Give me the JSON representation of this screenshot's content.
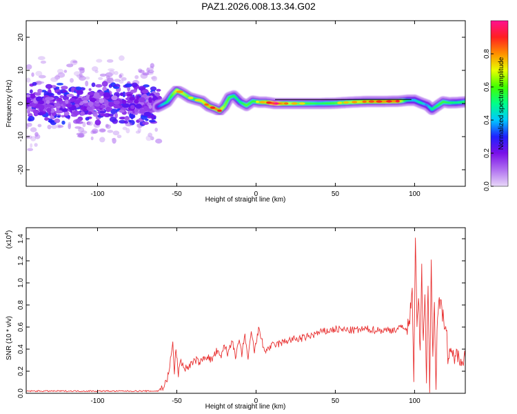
{
  "title": "PAZ1.2026.008.13.34.G02",
  "chart_data": [
    {
      "type": "heatmap",
      "name": "spectrogram",
      "xlabel": "Height of straight line (km)",
      "ylabel": "Frequency (Hz)",
      "xlim": [
        -145,
        132
      ],
      "ylim": [
        -25,
        25
      ],
      "xticks": [
        -100,
        -50,
        0,
        50,
        100
      ],
      "yticks": [
        -20,
        -10,
        0,
        10,
        20
      ],
      "colorbar": {
        "label": "Normalized spectral amplitude",
        "range": [
          0,
          1
        ],
        "ticks": [
          "0.0",
          "0.2",
          "0.4",
          "0.6",
          "0.8"
        ],
        "tick_values": [
          0,
          0.2,
          0.4,
          0.6,
          0.8
        ],
        "colormap": [
          "#e8d8f8",
          "#b070f0",
          "#7a10e8",
          "#2020ff",
          "#00c8ff",
          "#00ff88",
          "#40ff00",
          "#e8ff00",
          "#ff9000",
          "#ff2020",
          "#ff1090"
        ]
      },
      "noise_region_x": [
        -145,
        -63
      ],
      "reference_line": {
        "x": [
          12,
          98
        ],
        "y": 1.2
      },
      "ridge": {
        "x": [
          -62,
          -59,
          -56,
          -53,
          -50,
          -46,
          -42,
          -38,
          -34,
          -30,
          -26,
          -23,
          -20,
          -17,
          -14,
          -10,
          -6,
          -2,
          2,
          6,
          12,
          20,
          30,
          40,
          50,
          60,
          70,
          80,
          90,
          96,
          100,
          104,
          108,
          111,
          114,
          118,
          122,
          127,
          132
        ],
        "freq": [
          -1.0,
          -0.3,
          0.5,
          2.5,
          4.0,
          3.0,
          1.8,
          1.2,
          0.7,
          -0.8,
          -1.5,
          -2.2,
          -0.8,
          1.8,
          2.3,
          0.4,
          -0.6,
          0.7,
          0.4,
          0.4,
          0.0,
          0.0,
          0.0,
          0.0,
          0.1,
          0.4,
          0.6,
          0.6,
          0.7,
          1.0,
          1.0,
          0.2,
          -0.5,
          -1.8,
          -0.8,
          0.5,
          0.2,
          0.3,
          0.5
        ],
        "amp": [
          0.3,
          0.4,
          0.5,
          0.6,
          0.7,
          0.68,
          0.62,
          0.58,
          0.7,
          0.75,
          0.82,
          0.8,
          0.65,
          0.6,
          0.55,
          0.5,
          0.62,
          0.58,
          0.62,
          0.72,
          0.95,
          0.7,
          0.62,
          0.55,
          0.6,
          0.68,
          0.75,
          0.8,
          0.82,
          0.45,
          0.4,
          0.5,
          0.35,
          0.5,
          0.55,
          0.6,
          0.55,
          0.5,
          0.55
        ]
      }
    },
    {
      "type": "line",
      "name": "snr",
      "xlabel": "Height of straight line (km)",
      "ylabel": "SNR (10 * v/v)",
      "scale_label": "(x10",
      "scale_exponent": "4",
      "scale_suffix": ")",
      "xlim": [
        -145,
        132
      ],
      "ylim": [
        0,
        1.5
      ],
      "xticks": [
        -100,
        -50,
        0,
        50,
        100
      ],
      "yticks": [
        "0.0",
        "0.2",
        "0.4",
        "0.6",
        "0.8",
        "1.0",
        "1.2",
        "1.4"
      ],
      "ytick_values": [
        0,
        0.2,
        0.4,
        0.6,
        0.8,
        1.0,
        1.2,
        1.4
      ],
      "color": "#e83030",
      "series": [
        {
          "name": "SNR",
          "x": [
            -145,
            -120,
            -90,
            -62,
            -58,
            -56,
            -54,
            -52.5,
            -51.5,
            -50.5,
            -49,
            -48,
            -47,
            -45,
            -42,
            -38,
            -35,
            -32,
            -28,
            -25,
            -22,
            -20,
            -18,
            -15,
            -13,
            -11,
            -9,
            -7,
            -5,
            -3,
            -1,
            0,
            2,
            5,
            10,
            15,
            20,
            30,
            40,
            50,
            60,
            70,
            80,
            90,
            93,
            95,
            97,
            98.5,
            99.5,
            100.5,
            101.5,
            102.5,
            103.5,
            104.5,
            105.5,
            106.5,
            107.5,
            108.5,
            109.5,
            110.5,
            111.5,
            112.5,
            113.5,
            114.5,
            116,
            118,
            120,
            121,
            124,
            128,
            132
          ],
          "y": [
            0.02,
            0.02,
            0.02,
            0.02,
            0.07,
            0.12,
            0.3,
            0.45,
            0.18,
            0.42,
            0.15,
            0.3,
            0.28,
            0.22,
            0.25,
            0.3,
            0.28,
            0.34,
            0.3,
            0.38,
            0.32,
            0.45,
            0.35,
            0.5,
            0.3,
            0.48,
            0.35,
            0.53,
            0.3,
            0.55,
            0.38,
            0.45,
            0.6,
            0.38,
            0.43,
            0.45,
            0.48,
            0.5,
            0.55,
            0.58,
            0.57,
            0.58,
            0.57,
            0.58,
            0.62,
            0.55,
            0.68,
            1.0,
            0.05,
            1.48,
            0.55,
            0.9,
            0.35,
            1.1,
            0.45,
            0.95,
            0.1,
            1.0,
            0.02,
            1.2,
            0.3,
            0.85,
            0.1,
            0.75,
            0.82,
            0.7,
            0.6,
            0.32,
            0.35,
            0.33,
            0.32
          ]
        }
      ]
    }
  ]
}
